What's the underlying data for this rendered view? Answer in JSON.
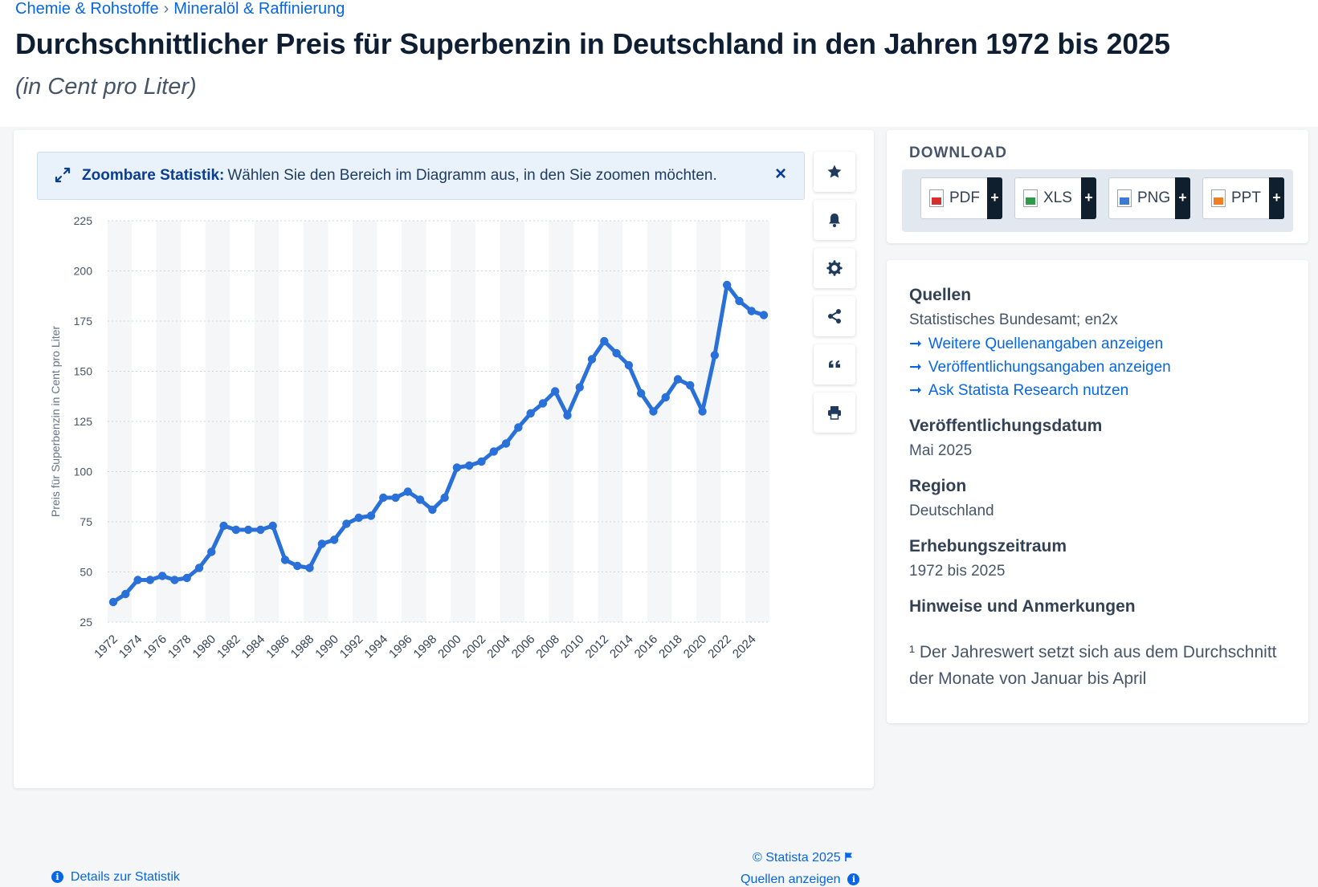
{
  "breadcrumb": [
    "Chemie & Rohstoffe",
    "Mineralöl & Raffinierung"
  ],
  "breadcrumb_separator": "›",
  "title": "Durchschnittlicher Preis für Superbenzin in Deutschland in den Jahren 1972 bis 2025",
  "subtitle": "(in Cent pro Liter)",
  "zoom_banner": {
    "bold": "Zoombare Statistik:",
    "text": "Wählen Sie den Bereich im Diagramm aus, in den Sie zoomen möchten.",
    "close": "×"
  },
  "toolbar": [
    "star-icon",
    "bell-icon",
    "gear-icon",
    "share-icon",
    "quote-icon",
    "print-icon"
  ],
  "chart_data": {
    "type": "line",
    "ylabel": "Preis für Superbenzin in Cent pro Liter",
    "ylim": [
      25,
      225
    ],
    "yticks": [
      25,
      50,
      75,
      100,
      125,
      150,
      175,
      200,
      225
    ],
    "x_tick_labels": [
      "1972",
      "1974",
      "1976",
      "1978",
      "1980",
      "1982",
      "1984",
      "1986",
      "1988",
      "1990",
      "1992",
      "1994",
      "1996",
      "1998",
      "2000",
      "2002",
      "2004",
      "2006",
      "2008",
      "2010",
      "2012",
      "2014",
      "2016",
      "2018",
      "2020",
      "2022",
      "2024"
    ],
    "line_color": "#2a70d9",
    "grid": "horizontal dotted, alternating vertical bands",
    "series": [
      {
        "x": [
          1972,
          1973,
          1974,
          1975,
          1976,
          1977,
          1978,
          1979,
          1980,
          1981,
          1982,
          1983,
          1984,
          1985,
          1986,
          1987,
          1988,
          1989,
          1990,
          1991,
          1992,
          1993,
          1994,
          1995,
          1996,
          1997,
          1998,
          1999,
          2000,
          2001,
          2002,
          2003,
          2004,
          2005,
          2006,
          2007,
          2008,
          2009,
          2010,
          2011,
          2012,
          2013,
          2014,
          2015,
          2016,
          2017,
          2018,
          2019,
          2020,
          2021,
          2022,
          2023,
          2024,
          2025
        ],
        "values": [
          35,
          39,
          46,
          46,
          48,
          46,
          47,
          52,
          60,
          73,
          71,
          71,
          71,
          73,
          56,
          53,
          52,
          64,
          66,
          74,
          77,
          78,
          87,
          87,
          90,
          86,
          81,
          87,
          102,
          103,
          105,
          110,
          114,
          122,
          129,
          134,
          140,
          128,
          142,
          156,
          165,
          159,
          153,
          139,
          130,
          137,
          146,
          143,
          130,
          158,
          193,
          185,
          180,
          178
        ]
      }
    ]
  },
  "copyright": "© Statista 2025",
  "details_link": "Details zur Statistik",
  "sources_link": "Quellen anzeigen",
  "download": {
    "title": "DOWNLOAD",
    "buttons": [
      {
        "label": "PDF",
        "color": "#d32f2f"
      },
      {
        "label": "XLS",
        "color": "#2e9b46"
      },
      {
        "label": "PNG",
        "color": "#3b7bd4"
      },
      {
        "label": "PPT",
        "color": "#f07e22"
      }
    ],
    "plus": "+"
  },
  "info": {
    "sources_title": "Quellen",
    "sources_value": "Statistisches Bundesamt; en2x",
    "links": [
      "Weitere Quellenangaben anzeigen",
      "Veröffentlichungsangaben anzeigen",
      "Ask Statista Research nutzen"
    ],
    "link_arrow": "➞",
    "pub_date_title": "Veröffentlichungsdatum",
    "pub_date_value": "Mai 2025",
    "region_title": "Region",
    "region_value": "Deutschland",
    "period_title": "Erhebungszeitraum",
    "period_value": "1972 bis 2025",
    "notes_title": "Hinweise und Anmerkungen",
    "note": "¹ Der Jahreswert setzt sich aus dem Durchschnitt der Monate von Januar bis April"
  }
}
